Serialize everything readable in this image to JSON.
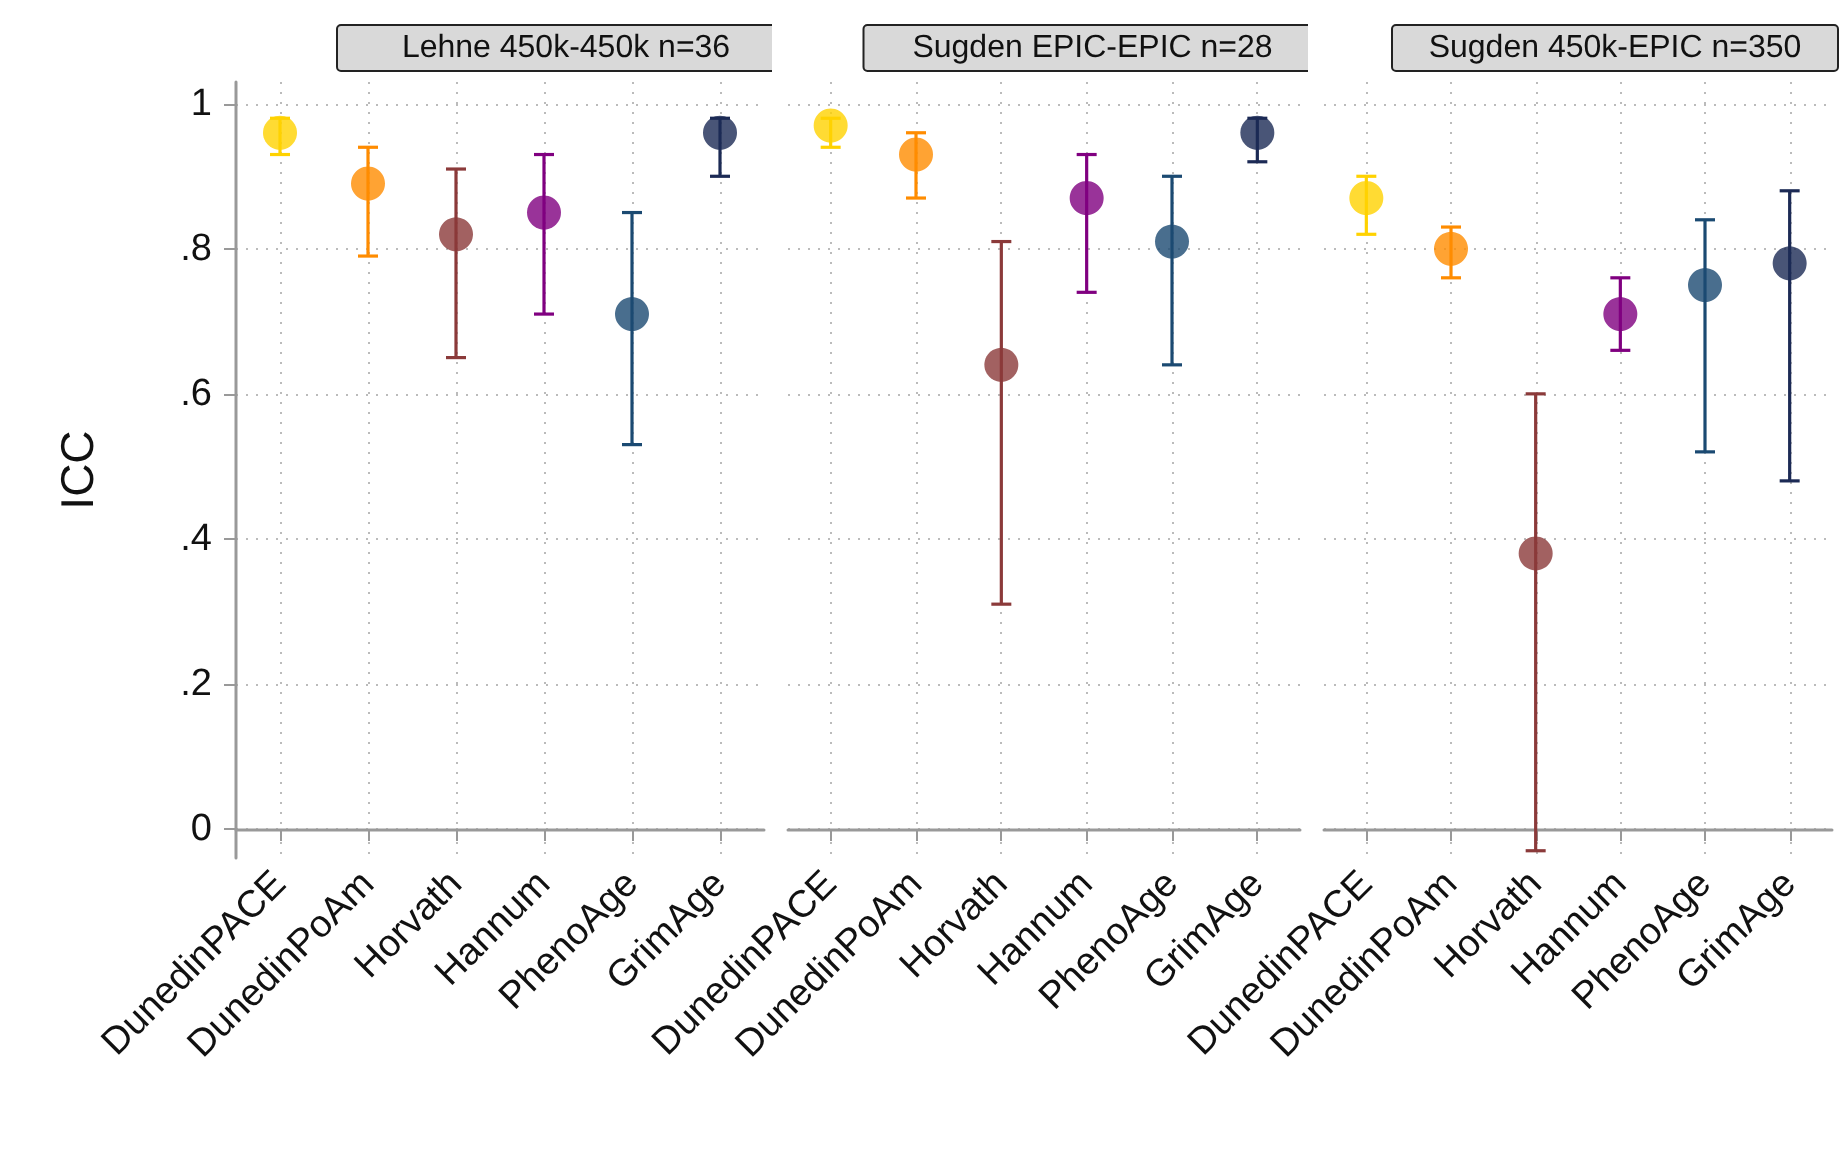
{
  "chart_data": [
    {
      "type": "scatter",
      "title": "Lehne 450k-450k n=36",
      "ylabel": "ICC",
      "categories": [
        "DunedinPACE",
        "DunedinPoAm",
        "Horvath",
        "Hannum",
        "PhenoAge",
        "GrimAge"
      ],
      "values": [
        0.96,
        0.89,
        0.82,
        0.85,
        0.71,
        0.96
      ],
      "colors": [
        "#ffd200",
        "#ff8c00",
        "#8b3a3a",
        "#800080",
        "#1b4a72",
        "#1c2a55"
      ],
      "errors": [
        [
          0.93,
          0.98
        ],
        [
          0.79,
          0.94
        ],
        [
          0.65,
          0.91
        ],
        [
          0.71,
          0.93
        ],
        [
          0.53,
          0.85
        ],
        [
          0.9,
          0.98
        ]
      ],
      "ylim": [
        -0.04,
        1.03
      ],
      "yticks": [
        0,
        {
          "value": 0.2,
          "label": ".2"
        },
        {
          "value": 0.4,
          "label": ".4"
        },
        {
          "value": 0.6,
          "label": ".6"
        },
        {
          "value": 0.8,
          "label": ".8"
        },
        1
      ],
      "grid": true,
      "marker": "circle"
    },
    {
      "type": "scatter",
      "title": "Sugden EPIC-EPIC n=28",
      "categories": [
        "DunedinPACE",
        "DunedinPoAm",
        "Horvath",
        "Hannum",
        "PhenoAge",
        "GrimAge"
      ],
      "values": [
        0.97,
        0.93,
        0.64,
        0.87,
        0.81,
        0.96
      ],
      "colors": [
        "#ffd200",
        "#ff8c00",
        "#8b3a3a",
        "#800080",
        "#1b4a72",
        "#1c2a55"
      ],
      "errors": [
        [
          0.94,
          0.98
        ],
        [
          0.87,
          0.96
        ],
        [
          0.31,
          0.81
        ],
        [
          0.74,
          0.93
        ],
        [
          0.64,
          0.9
        ],
        [
          0.92,
          0.98
        ]
      ],
      "ylim": [
        -0.04,
        1.03
      ],
      "yticks": [
        0,
        0.2,
        0.4,
        0.6,
        0.8,
        1
      ],
      "grid": true,
      "marker": "circle",
      "tick_labels": "x"
    },
    {
      "type": "scatter",
      "title": "Sugden 450k-EPIC n=350",
      "categories": [
        "DunedinPACE",
        "DunedinPoAm",
        "Horvath",
        "Hannum",
        "PhenoAge",
        "GrimAge"
      ],
      "values": [
        0.87,
        0.8,
        0.38,
        0.71,
        0.75,
        0.78
      ],
      "colors": [
        "#ffd200",
        "#ff8c00",
        "#8b3a3a",
        "#800080",
        "#1b4a72",
        "#1c2a55"
      ],
      "errors": [
        [
          0.82,
          0.9
        ],
        [
          0.76,
          0.83
        ],
        [
          -0.03,
          0.6
        ],
        [
          0.66,
          0.76
        ],
        [
          0.52,
          0.84
        ],
        [
          0.48,
          0.88
        ]
      ],
      "ylim": [
        -0.04,
        1.03
      ],
      "yticks": [
        0,
        0.2,
        0.4,
        0.6,
        0.8,
        1
      ],
      "grid": true,
      "marker": "circle",
      "tick_labels": "x"
    }
  ]
}
